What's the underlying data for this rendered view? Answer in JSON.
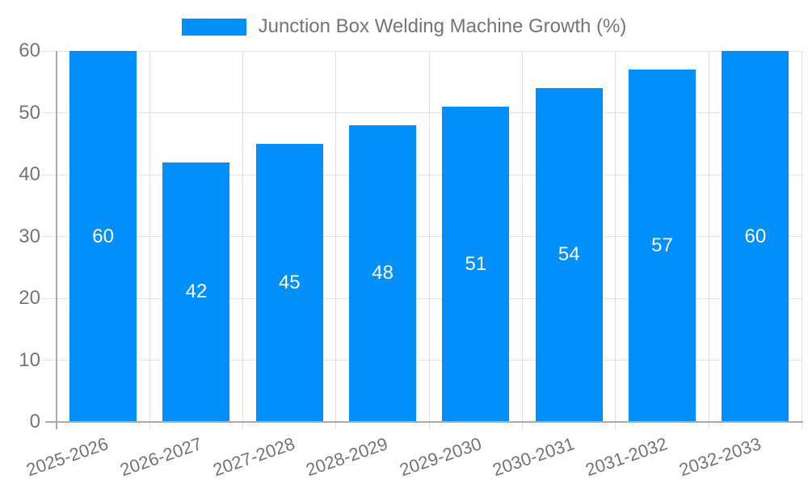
{
  "legend": {
    "label": "Junction Box Welding Machine Growth (%)"
  },
  "chart_data": {
    "type": "bar",
    "title": "Junction Box Welding Machine Growth (%)",
    "series": [
      {
        "name": "Junction Box Welding Machine Growth (%)",
        "values": [
          60,
          42,
          45,
          48,
          51,
          54,
          57,
          60
        ]
      }
    ],
    "categories": [
      "2025-2026",
      "2026-2027",
      "2027-2028",
      "2028-2029",
      "2029-2030",
      "2030-2031",
      "2031-2032",
      "2032-2033"
    ],
    "value_labels": [
      "60",
      "42",
      "45",
      "48",
      "51",
      "54",
      "57",
      "60"
    ],
    "xlabel": "",
    "ylabel": "",
    "ylim": [
      0,
      60
    ],
    "yticks": [
      "0",
      "10",
      "20",
      "30",
      "40",
      "50",
      "60"
    ],
    "grid": "on",
    "legend_position": "top",
    "colors": {
      "bar": "#008FFB",
      "value_label": "#FFFFFF",
      "axis_text": "#757575",
      "h_gridline": "#E5E5E5",
      "v_gridline": "#E0E0E0",
      "axis_line": "#ABABAB",
      "background": "#FFFFFF"
    }
  }
}
